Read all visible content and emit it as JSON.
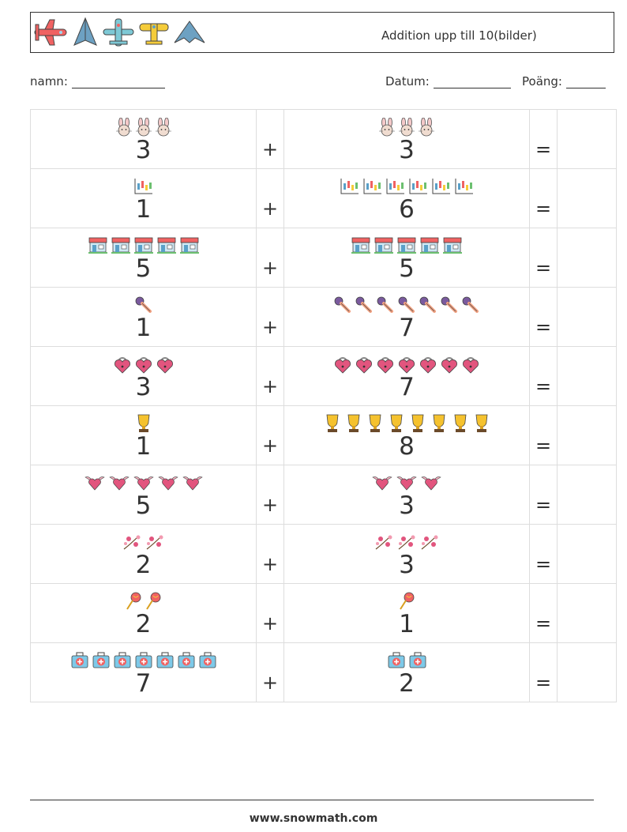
{
  "header": {
    "title": "Addition upp till 10(bilder)",
    "planes": [
      "red-plane-icon",
      "blue-stealth-jet-icon",
      "teal-plane-icon",
      "yellow-plane-icon",
      "blue-stealth-jet-icon"
    ]
  },
  "fields": {
    "name_label": "namn:",
    "date_label": "Datum:",
    "score_label": "Poäng:"
  },
  "problems": [
    {
      "a": 3,
      "b": 3,
      "icon": "bunny-icon"
    },
    {
      "a": 1,
      "b": 6,
      "icon": "candlestick-chart-icon"
    },
    {
      "a": 5,
      "b": 5,
      "icon": "storefront-icon"
    },
    {
      "a": 1,
      "b": 7,
      "icon": "microphone-icon"
    },
    {
      "a": 3,
      "b": 7,
      "icon": "heart-lock-icon"
    },
    {
      "a": 1,
      "b": 8,
      "icon": "trophy-icon"
    },
    {
      "a": 5,
      "b": 3,
      "icon": "winged-heart-icon"
    },
    {
      "a": 2,
      "b": 3,
      "icon": "blossom-branch-icon"
    },
    {
      "a": 2,
      "b": 1,
      "icon": "lollipop-icon"
    },
    {
      "a": 7,
      "b": 2,
      "icon": "first-aid-kit-icon"
    }
  ],
  "operators": {
    "plus": "+",
    "equals": "="
  },
  "footer": {
    "url": "www.snowmath.com"
  }
}
